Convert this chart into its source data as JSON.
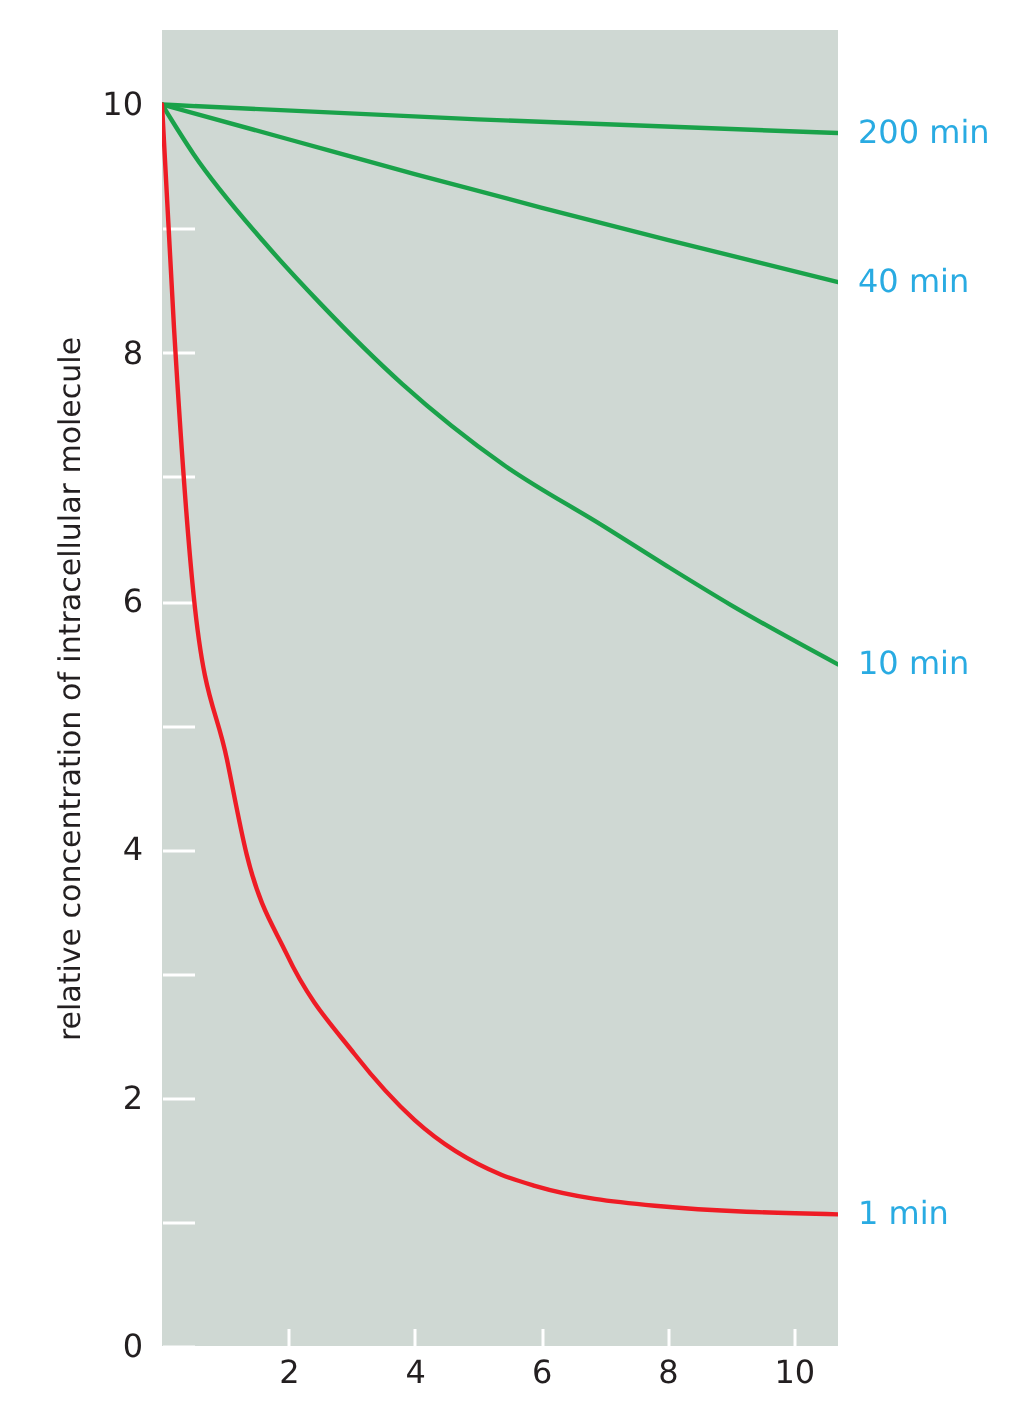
{
  "chart_data": {
    "type": "line",
    "ylabel": "relative concentration of intracellular molecule",
    "xlim": [
      0,
      10.7
    ],
    "xticks": [
      2,
      4,
      6,
      8,
      10
    ],
    "ylim": [
      0,
      10.6
    ],
    "yticks": [
      0,
      {
        "value": 1,
        "label": null
      },
      2,
      {
        "value": 3,
        "label": null
      },
      4,
      {
        "value": 5,
        "label": null
      },
      6,
      {
        "value": 7,
        "label": null
      },
      8,
      {
        "value": 9,
        "label": null
      },
      10
    ],
    "grid": false,
    "marker": "none",
    "line_style": "solid",
    "series": [
      {
        "name": "200 min",
        "color": "#1aa24a",
        "x": [
          0,
          5,
          10.7
        ],
        "values": [
          10,
          9.88,
          9.77
        ]
      },
      {
        "name": "40 min",
        "color": "#1aa24a",
        "x": [
          0,
          2,
          4,
          6,
          8,
          10.7
        ],
        "values": [
          10,
          9.72,
          9.44,
          9.17,
          8.91,
          8.57
        ]
      },
      {
        "name": "10 min",
        "color": "#1aa24a",
        "x": [
          0,
          0.5,
          1.6,
          2.5,
          3.8,
          5.4,
          7,
          8,
          9,
          10.7
        ],
        "values": [
          10,
          9.6,
          8.9,
          8.4,
          7.75,
          7.1,
          6.6,
          6.28,
          5.97,
          5.49
        ]
      },
      {
        "name": "1 min",
        "color": "#ee1c25",
        "x": [
          0,
          0.19,
          0.5,
          1.03,
          1.34,
          1.97,
          3.05,
          4,
          5.37,
          5.9,
          7.8,
          10.7
        ],
        "values": [
          10,
          8.2,
          6.05,
          4.72,
          3.96,
          3.16,
          2.35,
          1.82,
          1.38,
          1.29,
          1.13,
          1.06
        ]
      }
    ]
  }
}
